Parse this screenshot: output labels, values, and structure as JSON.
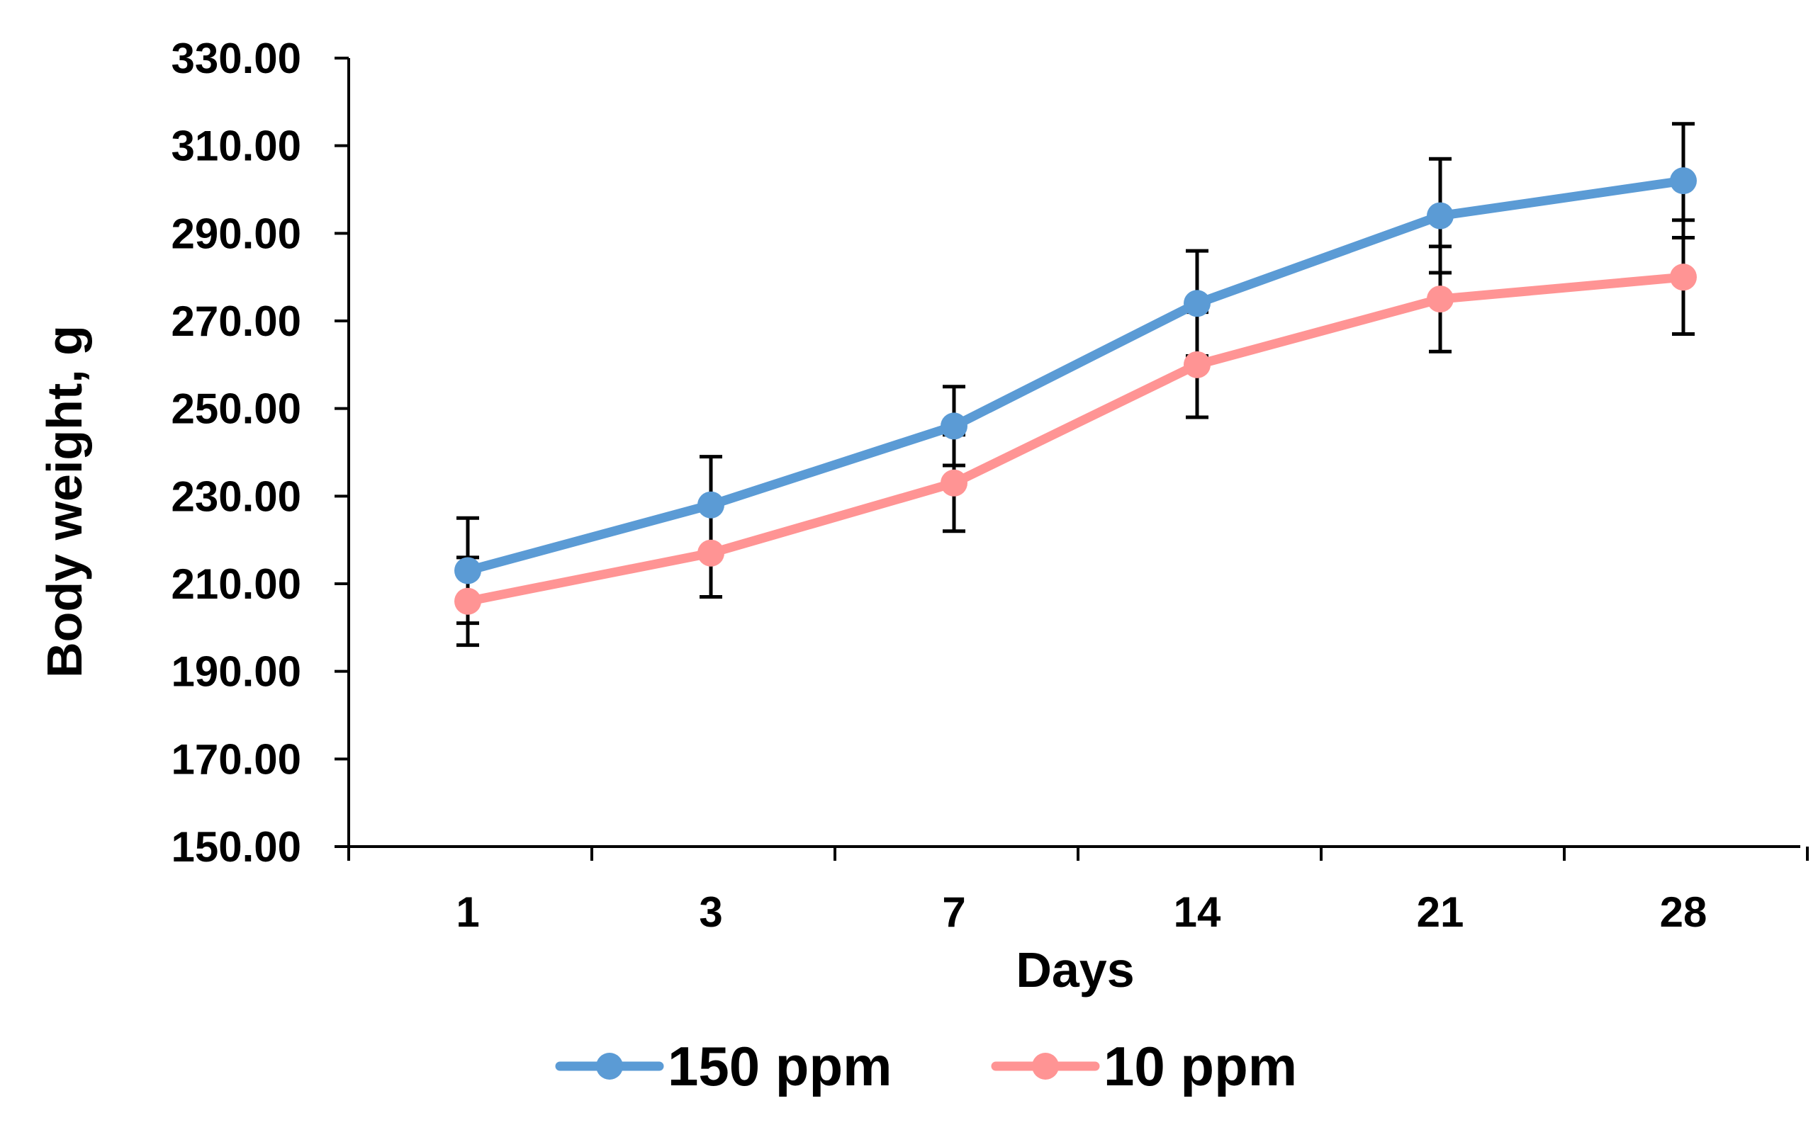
{
  "chart_data": {
    "type": "line",
    "title": "",
    "xlabel": "Days",
    "ylabel": "Body weight, g",
    "categories": [
      "1",
      "3",
      "7",
      "14",
      "21",
      "28"
    ],
    "ylim": [
      150,
      330
    ],
    "yticks": [
      "150.00",
      "170.00",
      "190.00",
      "210.00",
      "230.00",
      "250.00",
      "270.00",
      "290.00",
      "310.00",
      "330.00"
    ],
    "grid": false,
    "legend_position": "bottom-center",
    "series": [
      {
        "name": "150 ppm",
        "color": "#5B9BD5",
        "values": [
          213,
          228,
          246,
          274,
          294,
          302
        ],
        "errors": [
          12,
          11,
          9,
          12,
          13,
          13
        ]
      },
      {
        "name": "10 ppm",
        "color": "#FF9494",
        "values": [
          206,
          217,
          233,
          260,
          275,
          280
        ],
        "errors": [
          10,
          10,
          11,
          12,
          12,
          13
        ]
      }
    ]
  }
}
